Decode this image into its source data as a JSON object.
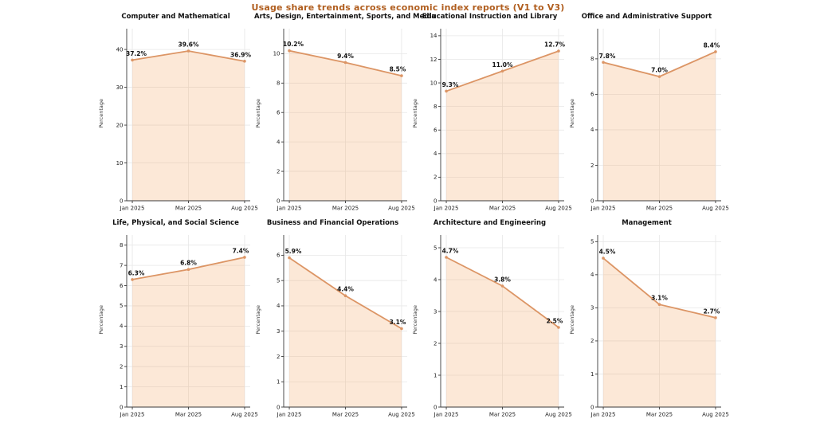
{
  "page": {
    "title": "Usage share trends across economic index reports (V1 to V3)"
  },
  "chart_data": {
    "type": "area",
    "layout": "2x4 grid of small multiples, line with area fill and point labels",
    "title": "Usage share trends across economic index reports (V1 to V3)",
    "categories": [
      "Jan 2025",
      "Mar 2025",
      "Aug 2025"
    ],
    "ylabel": "Percentage",
    "grid": true,
    "legend": "none",
    "colors": {
      "title": "#b05e1f",
      "line": "#dc9565",
      "area_fill": "#f4a460",
      "area_opacity": 0.25
    },
    "subplots": [
      {
        "title": "Computer and Mathematical",
        "values": [
          37.2,
          39.6,
          36.9
        ],
        "labels": [
          "37.2%",
          "39.6%",
          "36.9%"
        ],
        "yticks": [
          0,
          10,
          20,
          30,
          40
        ],
        "ylim": [
          0,
          45.5
        ]
      },
      {
        "title": "Arts, Design, Entertainment, Sports, and Media",
        "values": [
          10.2,
          9.4,
          8.5
        ],
        "labels": [
          "10.2%",
          "9.4%",
          "8.5%"
        ],
        "yticks": [
          0,
          2,
          4,
          6,
          8,
          10
        ],
        "ylim": [
          0,
          11.7
        ]
      },
      {
        "title": "Educational Instruction and Library",
        "values": [
          9.3,
          11.0,
          12.7
        ],
        "labels": [
          "9.3%",
          "11.0%",
          "12.7%"
        ],
        "yticks": [
          0,
          2,
          4,
          6,
          8,
          10,
          12,
          14
        ],
        "ylim": [
          0,
          14.6
        ]
      },
      {
        "title": "Office and Administrative Support",
        "values": [
          7.8,
          7.0,
          8.4
        ],
        "labels": [
          "7.8%",
          "7.0%",
          "8.4%"
        ],
        "yticks": [
          0,
          2,
          4,
          6,
          8
        ],
        "ylim": [
          0,
          9.7
        ]
      },
      {
        "title": "Life, Physical, and Social Science",
        "values": [
          6.3,
          6.8,
          7.4
        ],
        "labels": [
          "6.3%",
          "6.8%",
          "7.4%"
        ],
        "yticks": [
          0,
          1,
          2,
          3,
          4,
          5,
          6,
          7,
          8
        ],
        "ylim": [
          0,
          8.5
        ]
      },
      {
        "title": "Business and Financial Operations",
        "values": [
          5.9,
          4.4,
          3.1
        ],
        "labels": [
          "5.9%",
          "4.4%",
          "3.1%"
        ],
        "yticks": [
          0,
          1,
          2,
          3,
          4,
          5,
          6
        ],
        "ylim": [
          0,
          6.8
        ]
      },
      {
        "title": "Architecture and Engineering",
        "values": [
          4.7,
          3.8,
          2.5
        ],
        "labels": [
          "4.7%",
          "3.8%",
          "2.5%"
        ],
        "yticks": [
          0,
          1,
          2,
          3,
          4,
          5
        ],
        "ylim": [
          0,
          5.4
        ]
      },
      {
        "title": "Management",
        "values": [
          4.5,
          3.1,
          2.7
        ],
        "labels": [
          "4.5%",
          "3.1%",
          "2.7%"
        ],
        "yticks": [
          0,
          1,
          2,
          3,
          4,
          5
        ],
        "ylim": [
          0,
          5.2
        ]
      }
    ]
  }
}
